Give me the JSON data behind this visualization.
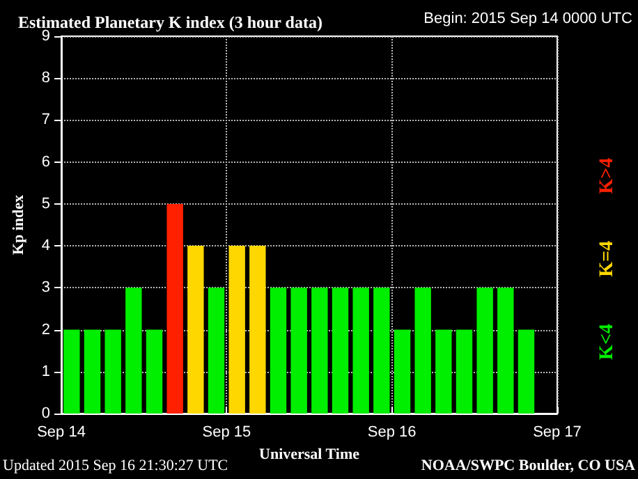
{
  "chart_data": {
    "type": "bar",
    "title": "Estimated Planetary K index (3 hour data)",
    "subtitle": "Begin: 2015 Sep 14 0000 UTC",
    "xlabel": "Universal Time",
    "ylabel": "Kp index",
    "x": [
      "2015-09-14T01:30",
      "2015-09-14T04:30",
      "2015-09-14T07:30",
      "2015-09-14T10:30",
      "2015-09-14T13:30",
      "2015-09-14T16:30",
      "2015-09-14T19:30",
      "2015-09-14T22:30",
      "2015-09-15T01:30",
      "2015-09-15T04:30",
      "2015-09-15T07:30",
      "2015-09-15T10:30",
      "2015-09-15T13:30",
      "2015-09-15T16:30",
      "2015-09-15T19:30",
      "2015-09-15T22:30",
      "2015-09-16T01:30",
      "2015-09-16T04:30",
      "2015-09-16T07:30",
      "2015-09-16T10:30",
      "2015-09-16T13:30",
      "2015-09-16T16:30",
      "2015-09-16T19:30"
    ],
    "series": [
      {
        "name": "K>4",
        "color": "#ff2000",
        "values": [
          null,
          null,
          null,
          null,
          null,
          5,
          null,
          null,
          null,
          null,
          null,
          null,
          null,
          null,
          null,
          null,
          null,
          null,
          null,
          null,
          null,
          null,
          null
        ]
      },
      {
        "name": "K=4",
        "color": "#ffd700",
        "values": [
          null,
          null,
          null,
          null,
          null,
          null,
          4,
          null,
          4,
          4,
          null,
          null,
          null,
          null,
          null,
          null,
          null,
          null,
          null,
          null,
          null,
          null,
          null
        ]
      },
      {
        "name": "K<4",
        "color": "#00ee00",
        "values": [
          2,
          2,
          2,
          3,
          2,
          null,
          null,
          3,
          null,
          null,
          3,
          3,
          3,
          3,
          3,
          3,
          2,
          3,
          2,
          2,
          3,
          3,
          2
        ]
      }
    ],
    "xlim": [
      "2015-09-14",
      "2015-09-17"
    ],
    "xticks": [
      {
        "value": "2015-09-14",
        "label": "Sep 14"
      },
      {
        "value": "2015-09-15",
        "label": "Sep 15"
      },
      {
        "value": "2015-09-16",
        "label": "Sep 16"
      },
      {
        "value": "2015-09-17",
        "label": "Sep 17"
      }
    ],
    "ylim": [
      0,
      9
    ],
    "yticks": [
      0,
      1,
      2,
      3,
      4,
      5,
      6,
      7,
      8,
      9
    ],
    "grid": true,
    "legend": "right",
    "annotations": [
      "Updated 2015 Sep 16 21:30:27 UTC",
      "NOAA/SWPC Boulder, CO USA"
    ]
  }
}
